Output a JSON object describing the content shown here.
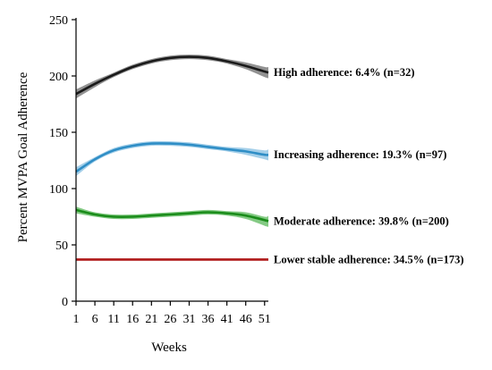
{
  "chart_data": {
    "type": "line",
    "title": "",
    "xlabel": "Weeks",
    "ylabel": "Percent MVPA Goal Adherence",
    "xlim": [
      1,
      52
    ],
    "ylim": [
      0,
      250
    ],
    "x_ticks": [
      1,
      6,
      11,
      16,
      21,
      26,
      31,
      36,
      41,
      46,
      51
    ],
    "y_ticks": [
      0,
      50,
      100,
      150,
      200,
      250
    ],
    "grid": false,
    "legend": "none",
    "series": [
      {
        "name": "High adherence: 6.4% (n=32)",
        "color": "#1a1a1a",
        "band_color": "#6e6e6e",
        "x": [
          1,
          6,
          11,
          16,
          21,
          26,
          31,
          36,
          41,
          46,
          51,
          52
        ],
        "y": [
          184,
          193,
          201,
          208,
          213,
          216,
          217,
          216,
          213,
          209,
          204,
          203
        ],
        "band": [
          [
            180,
            188
          ],
          [
            190,
            196
          ],
          [
            199,
            203
          ],
          [
            206,
            210
          ],
          [
            211,
            215
          ],
          [
            214,
            218
          ],
          [
            215,
            219
          ],
          [
            214,
            218
          ],
          [
            211,
            215
          ],
          [
            206,
            212
          ],
          [
            199,
            208
          ],
          [
            198,
            208
          ]
        ]
      },
      {
        "name": "Increasing adherence: 19.3% (n=97)",
        "color": "#2f8ec6",
        "band_color": "#86bfe1",
        "x": [
          1,
          6,
          11,
          16,
          21,
          26,
          31,
          36,
          41,
          46,
          51,
          52
        ],
        "y": [
          115,
          126,
          134,
          138,
          140,
          140,
          139,
          137,
          135,
          133,
          130,
          130
        ],
        "band": [
          [
            111,
            119
          ],
          [
            124,
            128
          ],
          [
            132,
            136
          ],
          [
            136,
            140
          ],
          [
            138,
            142
          ],
          [
            138,
            142
          ],
          [
            137,
            141
          ],
          [
            135,
            139
          ],
          [
            133,
            137
          ],
          [
            130,
            136
          ],
          [
            126,
            134
          ],
          [
            125,
            135
          ]
        ]
      },
      {
        "name": "Moderate adherence: 39.8% (n=200)",
        "color": "#1a8c1a",
        "band_color": "#5bb85b",
        "x": [
          1,
          6,
          11,
          16,
          21,
          26,
          31,
          36,
          41,
          46,
          51,
          52
        ],
        "y": [
          81,
          77,
          75,
          75,
          76,
          77,
          78,
          79,
          78,
          76,
          72,
          71
        ],
        "band": [
          [
            78,
            84
          ],
          [
            75,
            79
          ],
          [
            73,
            77
          ],
          [
            73,
            77
          ],
          [
            74,
            78
          ],
          [
            75,
            79
          ],
          [
            76,
            80
          ],
          [
            77,
            81
          ],
          [
            76,
            80
          ],
          [
            73,
            79
          ],
          [
            67,
            75
          ],
          [
            66,
            76
          ]
        ]
      },
      {
        "name": "Lower stable adherence: 34.5% (n=173)",
        "color": "#b01c1c",
        "band_color": "#d46a6a",
        "x": [
          1,
          6,
          11,
          16,
          21,
          26,
          31,
          36,
          41,
          46,
          51,
          52
        ],
        "y": [
          37,
          37,
          37,
          37,
          37,
          37,
          37,
          37,
          37,
          37,
          37,
          37
        ],
        "band": [
          [
            36,
            38
          ],
          [
            36,
            38
          ],
          [
            36,
            38
          ],
          [
            36,
            38
          ],
          [
            36,
            38
          ],
          [
            36,
            38
          ],
          [
            36,
            38
          ],
          [
            36,
            38
          ],
          [
            36,
            38
          ],
          [
            36,
            38
          ],
          [
            36,
            38
          ],
          [
            36,
            38
          ]
        ]
      }
    ]
  }
}
